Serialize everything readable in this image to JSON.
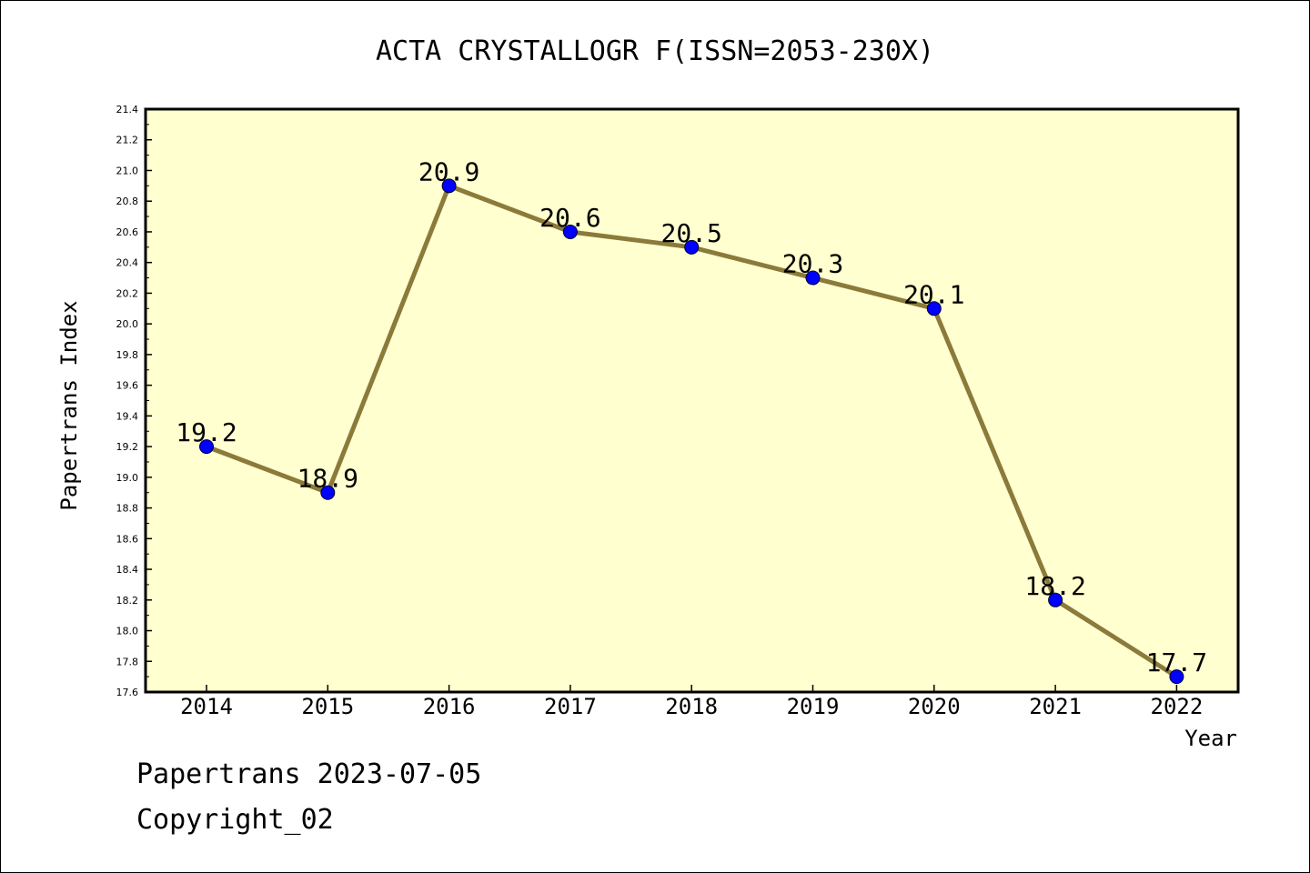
{
  "chart_data": {
    "type": "line",
    "title": "ACTA CRYSTALLOGR F(ISSN=2053-230X)",
    "xlabel": "Year",
    "ylabel": "Papertrans Index",
    "categories": [
      "2014",
      "2015",
      "2016",
      "2017",
      "2018",
      "2019",
      "2020",
      "2021",
      "2022"
    ],
    "values": [
      19.2,
      18.9,
      20.9,
      20.6,
      20.5,
      20.3,
      20.1,
      18.2,
      17.7
    ],
    "data_labels": [
      "19.2",
      "18.9",
      "20.9",
      "20.6",
      "20.5",
      "20.3",
      "20.1",
      "18.2",
      "17.7"
    ],
    "ylim": [
      17.6,
      21.4
    ],
    "yticks": [
      "17.6",
      "17.8",
      "18.0",
      "18.2",
      "18.4",
      "18.6",
      "18.8",
      "19.0",
      "19.2",
      "19.4",
      "19.6",
      "19.8",
      "20.0",
      "20.2",
      "20.4",
      "20.6",
      "20.8",
      "21.0",
      "21.2",
      "21.4"
    ],
    "grid": false,
    "legend": "none",
    "colors": {
      "plot_background": "#ffffd0",
      "line": "#8b7a3a",
      "marker": "#0000ff",
      "axis": "#000000"
    }
  },
  "footer": {
    "line1": "Papertrans 2023-07-05",
    "line2": "Copyright_02"
  }
}
